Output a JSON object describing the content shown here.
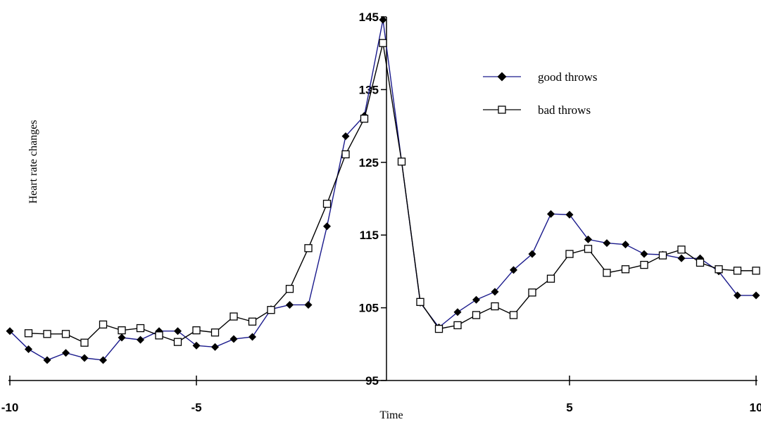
{
  "chart_data": {
    "type": "line",
    "title": "",
    "xlabel": "Time",
    "ylabel": "Heart rate changes",
    "xlim": [
      -10,
      10
    ],
    "ylim": [
      95,
      145
    ],
    "x_ticks": [
      -10,
      -5,
      5,
      10
    ],
    "x_tick_labels": [
      "-10",
      "-5",
      "5",
      "10"
    ],
    "y_ticks": [
      95,
      105,
      115,
      125,
      135,
      145
    ],
    "y_tick_labels": [
      "95",
      "105",
      "115",
      "125",
      "135",
      "145"
    ],
    "grid": false,
    "legend_position": "top-right",
    "series": [
      {
        "name": "good throws",
        "color": "#1a1a8c",
        "marker": "diamond-filled",
        "x": [
          -10,
          -9.5,
          -9,
          -8.5,
          -8,
          -7.5,
          -7,
          -6.5,
          -6,
          -5.5,
          -5,
          -4.5,
          -4,
          -3.5,
          -3,
          -2.5,
          -2,
          -1.5,
          -1,
          -0.5,
          0,
          0.5,
          1,
          1.5,
          2,
          2.5,
          3,
          3.5,
          4,
          4.5,
          5,
          5.5,
          6,
          6.5,
          7,
          7.5,
          8,
          8.5,
          9,
          9.5,
          10
        ],
        "y": [
          101.8,
          99.3,
          97.8,
          98.8,
          98.1,
          97.8,
          100.9,
          100.6,
          101.8,
          101.8,
          99.8,
          99.6,
          100.7,
          101.0,
          104.8,
          105.4,
          105.4,
          116.2,
          128.6,
          131.4,
          144.6,
          125.1,
          105.7,
          102.3,
          104.4,
          106.1,
          107.2,
          110.2,
          112.4,
          117.9,
          117.8,
          114.4,
          113.9,
          113.7,
          112.4,
          112.3,
          111.8,
          111.8,
          110.0,
          106.7,
          106.7
        ]
      },
      {
        "name": "bad throws",
        "color": "#000000",
        "marker": "square-open",
        "x": [
          -9.5,
          -9,
          -8.5,
          -8,
          -7.5,
          -7,
          -6.5,
          -6,
          -5.5,
          -5,
          -4.5,
          -4,
          -3.5,
          -3,
          -2.5,
          -2,
          -1.5,
          -1,
          -0.5,
          0,
          0.5,
          1,
          1.5,
          2,
          2.5,
          3,
          3.5,
          4,
          4.5,
          5,
          5.5,
          6,
          6.5,
          7,
          7.5,
          8,
          8.5,
          9,
          9.5,
          10
        ],
        "y": [
          101.5,
          101.4,
          101.4,
          100.2,
          102.7,
          101.9,
          102.2,
          101.2,
          100.3,
          101.9,
          101.6,
          103.8,
          103.1,
          104.7,
          107.6,
          113.2,
          119.3,
          126.1,
          131.0,
          141.4,
          125.1,
          105.8,
          102.1,
          102.6,
          104.0,
          105.2,
          104.0,
          107.1,
          109.0,
          112.4,
          113.1,
          109.8,
          110.3,
          110.9,
          112.2,
          113.0,
          111.2,
          110.3,
          110.1,
          110.1
        ]
      }
    ]
  }
}
